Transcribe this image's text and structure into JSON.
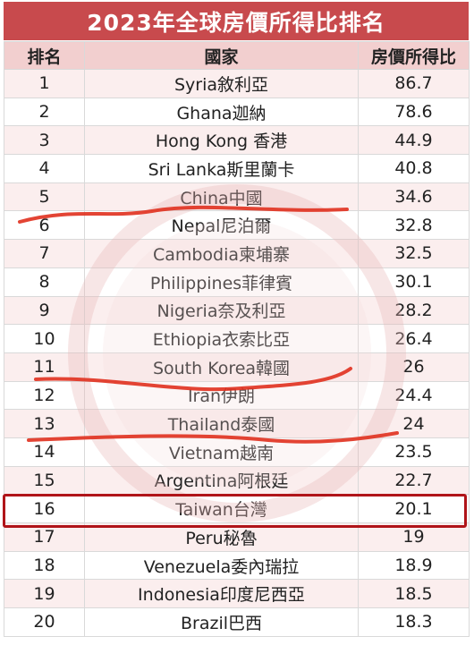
{
  "title": "2023年全球房價所得比排名",
  "headers": {
    "rank": "排名",
    "country": "國家",
    "ratio": "房價所得比"
  },
  "rows": [
    {
      "rank": "1",
      "country": "Syria敘利亞",
      "ratio": "86.7"
    },
    {
      "rank": "2",
      "country": "Ghana迦納",
      "ratio": "78.6"
    },
    {
      "rank": "3",
      "country": "Hong Kong 香港",
      "ratio": "44.9"
    },
    {
      "rank": "4",
      "country": "Sri Lanka斯里蘭卡",
      "ratio": "40.8"
    },
    {
      "rank": "5",
      "country": "China中國",
      "ratio": "34.6"
    },
    {
      "rank": "6",
      "country": "Nepal尼泊爾",
      "ratio": "32.8"
    },
    {
      "rank": "7",
      "country": "Cambodia柬埔寨",
      "ratio": "32.5"
    },
    {
      "rank": "8",
      "country": "Philippines菲律賓",
      "ratio": "30.1"
    },
    {
      "rank": "9",
      "country": "Nigeria奈及利亞",
      "ratio": "28.2"
    },
    {
      "rank": "10",
      "country": "Ethiopia衣索比亞",
      "ratio": "26.4"
    },
    {
      "rank": "11",
      "country": "South Korea韓國",
      "ratio": "26"
    },
    {
      "rank": "12",
      "country": "Iran伊朗",
      "ratio": "24.4"
    },
    {
      "rank": "13",
      "country": "Thailand泰國",
      "ratio": "24"
    },
    {
      "rank": "14",
      "country": "Vietnam越南",
      "ratio": "23.5"
    },
    {
      "rank": "15",
      "country": "Argentina阿根廷",
      "ratio": "22.7"
    },
    {
      "rank": "16",
      "country": "Taiwan台灣",
      "ratio": "20.1"
    },
    {
      "rank": "17",
      "country": "Peru秘魯",
      "ratio": "19"
    },
    {
      "rank": "18",
      "country": "Venezuela委內瑞拉",
      "ratio": "18.9"
    },
    {
      "rank": "19",
      "country": "Indonesia印度尼西亞",
      "ratio": "18.5"
    },
    {
      "rank": "20",
      "country": "Brazil巴西",
      "ratio": "18.3"
    }
  ],
  "colors": {
    "title_bg": "#c84a4d",
    "header_bg": "#f2cfcf",
    "stripe": "#fbeeee",
    "highlight": "#b01419",
    "marker": "#e0301e"
  }
}
